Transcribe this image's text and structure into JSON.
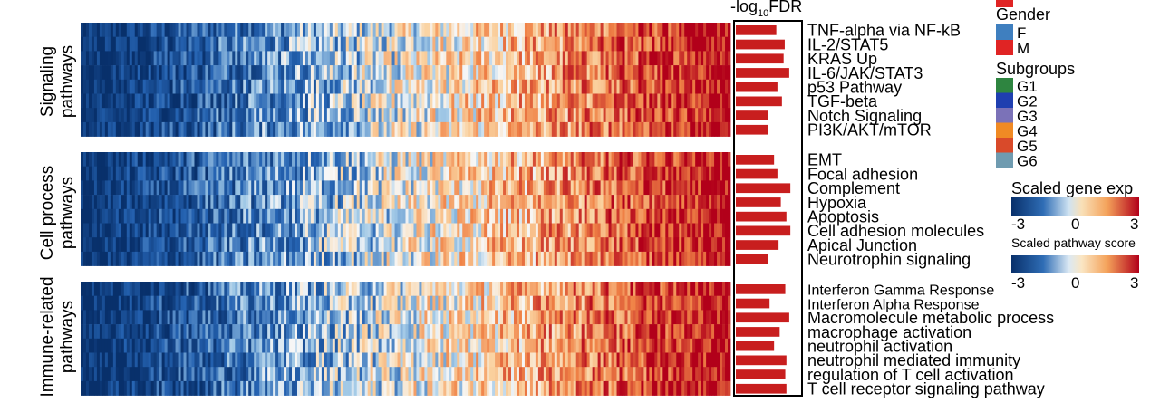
{
  "chart_data": {
    "type": "heatmap",
    "bar_title_main": "-log",
    "bar_title_sub": "10",
    "bar_title_end": "FDR",
    "groups": [
      {
        "label_lines": [
          "Signaling",
          "pathways"
        ],
        "rows": [
          {
            "name": "TNF-alpha via NF-kB",
            "value": 0.72
          },
          {
            "name": "IL-2/STAT5",
            "value": 0.87
          },
          {
            "name": "KRAS Up",
            "value": 0.85
          },
          {
            "name": "IL-6/JAK/STAT3",
            "value": 0.95
          },
          {
            "name": "p53 Pathway",
            "value": 0.74
          },
          {
            "name": "TGF-beta",
            "value": 0.82
          },
          {
            "name": "Notch Signaling",
            "value": 0.57
          },
          {
            "name": "PI3K/AKT/mTOR",
            "value": 0.58
          }
        ]
      },
      {
        "label_lines": [
          "Cell process",
          "pathways"
        ],
        "rows": [
          {
            "name": "EMT",
            "value": 0.68
          },
          {
            "name": "Focal adhesion",
            "value": 0.74
          },
          {
            "name": "Complement",
            "value": 0.97
          },
          {
            "name": "Hypoxia",
            "value": 0.8
          },
          {
            "name": "Apoptosis",
            "value": 0.9
          },
          {
            "name": "Cell adhesion molecules",
            "value": 0.97
          },
          {
            "name": "Apical Junction",
            "value": 0.76
          },
          {
            "name": "Neurotrophin signaling",
            "value": 0.57
          }
        ]
      },
      {
        "label_lines": [
          "Immune-related",
          "pathways"
        ],
        "rows": [
          {
            "name": "Interferon Gamma Response",
            "value": 0.88
          },
          {
            "name": "Interferon Alpha Response",
            "value": 0.6
          },
          {
            "name": "Macromolecule metabolic process",
            "value": 0.95
          },
          {
            "name": "macrophage activation",
            "value": 0.78
          },
          {
            "name": "neutrophil activation",
            "value": 0.68
          },
          {
            "name": "neutrophil mediated immunity",
            "value": 0.9
          },
          {
            "name": "regulation of T cell activation",
            "value": 0.88
          },
          {
            "name": "T cell receptor signaling pathway",
            "value": 0.9
          }
        ]
      }
    ],
    "heatmap_columns": 240,
    "color_range": [
      -3,
      3
    ],
    "legend": {
      "gender_title": "Gender",
      "gender_items": [
        {
          "label": "F",
          "color": "#3f7fbf"
        },
        {
          "label": "M",
          "color": "#e02424"
        }
      ],
      "subgroup_title": "Subgroups",
      "subgroup_items": [
        {
          "label": "G1",
          "color": "#2e8540"
        },
        {
          "label": "G2",
          "color": "#1f3fb0"
        },
        {
          "label": "G3",
          "color": "#7b72b8"
        },
        {
          "label": "G4",
          "color": "#f08a24"
        },
        {
          "label": "G5",
          "color": "#d94a2a"
        },
        {
          "label": "G6",
          "color": "#6f9bb0"
        }
      ],
      "top_swatch_color": "#e02424",
      "scale1_title": "Scaled gene exp",
      "scale2_title": "Scaled pathway score",
      "ticks": [
        "-3",
        "0",
        "3"
      ]
    },
    "colors": {
      "low": "#08306b",
      "mid_low": "#2f6db5",
      "center": "#f7f7f7",
      "mid_high": "#f4a25a",
      "high": "#b2001a",
      "bar": "#c81e1e"
    }
  }
}
